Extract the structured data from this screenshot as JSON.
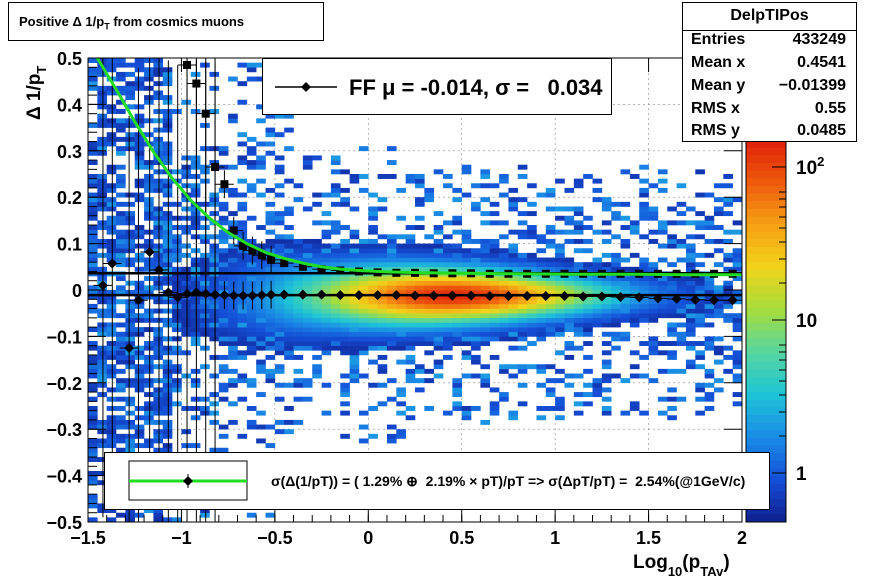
{
  "title": "Positive Δ 1/p_T from cosmics muons",
  "stats": {
    "name": "DelpTIPos",
    "rows": [
      {
        "label": "Entries",
        "value": "433249"
      },
      {
        "label": "Mean x",
        "value": "0.4541"
      },
      {
        "label": "Mean y",
        "value": "−0.01399"
      },
      {
        "label": "RMS x",
        "value": "0.55"
      },
      {
        "label": "RMS y",
        "value": "0.0485"
      }
    ]
  },
  "fit_legend": "FF μ = -0.014, σ =   0.034",
  "resolution_legend": "σ(Δ(1/pT)) = ( 1.29% ⊕  2.19% × pT)/pT => σ(ΔpT/pT) =  2.54%(@1GeV/c)",
  "colors": {
    "fit_curve": "#22dd22",
    "markers": "#000000",
    "palette": [
      "#101e8c",
      "#1450d8",
      "#1a8ce6",
      "#1ec4d6",
      "#56d6a0",
      "#a6dc3c",
      "#f2d41a",
      "#f6a014",
      "#ee5a0c",
      "#e0200a"
    ]
  },
  "chart_data": {
    "type": "heatmap",
    "xlabel": "Log_10(p_TAv)",
    "ylabel": "Δ 1/p_T",
    "xlim": [
      -1.5,
      2.0
    ],
    "ylim": [
      -0.5,
      0.5
    ],
    "x_ticks": [
      "−1.5",
      "−1",
      "−0.5",
      "0",
      "0.5",
      "1",
      "1.5",
      "2"
    ],
    "y_ticks": [
      "−0.5",
      "−0.4",
      "−0.3",
      "−0.2",
      "−0.1",
      "0",
      "0.1",
      "0.2",
      "0.3",
      "0.4",
      "0.5"
    ],
    "z_scale": "log",
    "z_ticks": [
      "1",
      "10",
      "10^2"
    ],
    "grid": true,
    "series": [
      {
        "marker": "filled-circle",
        "x": [
          -1.42,
          -1.37,
          -1.28,
          -1.23,
          -1.17,
          -1.12,
          -1.07,
          -1.02,
          -0.97,
          -0.92,
          -0.87,
          -0.82,
          -0.77,
          -0.72,
          -0.67,
          -0.62,
          -0.57,
          -0.52,
          -0.45,
          -0.35,
          -0.25,
          -0.15,
          -0.05,
          0.05,
          0.15,
          0.25,
          0.35,
          0.45,
          0.55,
          0.65,
          0.75,
          0.85,
          0.95,
          1.05,
          1.15,
          1.25,
          1.35,
          1.45,
          1.55,
          1.65,
          1.75,
          1.85,
          1.95
        ],
        "y": [
          0.01,
          0.057,
          -0.125,
          -0.022,
          0.082,
          0.043,
          -0.005,
          -0.016,
          -0.008,
          -0.005,
          -0.008,
          -0.01,
          -0.011,
          -0.012,
          -0.012,
          -0.012,
          -0.011,
          -0.01,
          -0.01,
          -0.01,
          -0.01,
          -0.011,
          -0.011,
          -0.011,
          -0.011,
          -0.012,
          -0.012,
          -0.012,
          -0.012,
          -0.013,
          -0.013,
          -0.013,
          -0.013,
          -0.013,
          -0.014,
          -0.014,
          -0.015,
          -0.016,
          -0.018,
          -0.019,
          -0.021,
          -0.022,
          -0.022
        ]
      },
      {
        "marker": "filled-square",
        "x": [
          -0.97,
          -0.92,
          -0.87,
          -0.82,
          -0.77,
          -0.72,
          -0.67,
          -0.62,
          -0.57,
          -0.52,
          -0.45,
          -0.35,
          -0.25,
          -0.15,
          -0.05,
          0.05,
          0.15,
          0.25,
          0.35,
          0.45,
          0.55,
          0.65,
          0.75,
          0.85,
          0.95,
          1.05,
          1.15,
          1.25,
          1.35,
          1.45,
          1.55,
          1.65,
          1.75,
          1.85,
          1.95
        ],
        "y": [
          0.485,
          0.445,
          0.38,
          0.265,
          0.228,
          0.128,
          0.095,
          0.085,
          0.075,
          0.065,
          0.058,
          0.05,
          0.045,
          0.042,
          0.04,
          0.038,
          0.037,
          0.037,
          0.036,
          0.036,
          0.036,
          0.035,
          0.035,
          0.035,
          0.035,
          0.035,
          0.035,
          0.035,
          0.035,
          0.035,
          0.035,
          0.035,
          0.035,
          0.035,
          0.035
        ]
      }
    ],
    "reference_lines": [
      {
        "y": 0.036,
        "from_x": -1.5,
        "to_x": 2.0
      },
      {
        "y": -0.011,
        "from_x": -1.5,
        "to_x": 2.0
      }
    ],
    "fit_curve": {
      "x": [
        -1.45,
        -1.35,
        -1.25,
        -1.15,
        -1.05,
        -0.95,
        -0.85,
        -0.75,
        -0.65,
        -0.55,
        -0.45,
        -0.35,
        -0.25,
        -0.15,
        -0.05,
        0.1,
        0.3,
        0.5,
        0.8,
        1.1,
        1.4,
        1.7,
        2.0
      ],
      "y": [
        0.5,
        0.433,
        0.363,
        0.298,
        0.241,
        0.193,
        0.155,
        0.124,
        0.1,
        0.081,
        0.068,
        0.058,
        0.05,
        0.045,
        0.042,
        0.039,
        0.037,
        0.036,
        0.035,
        0.034,
        0.034,
        0.033,
        0.033
      ]
    }
  }
}
